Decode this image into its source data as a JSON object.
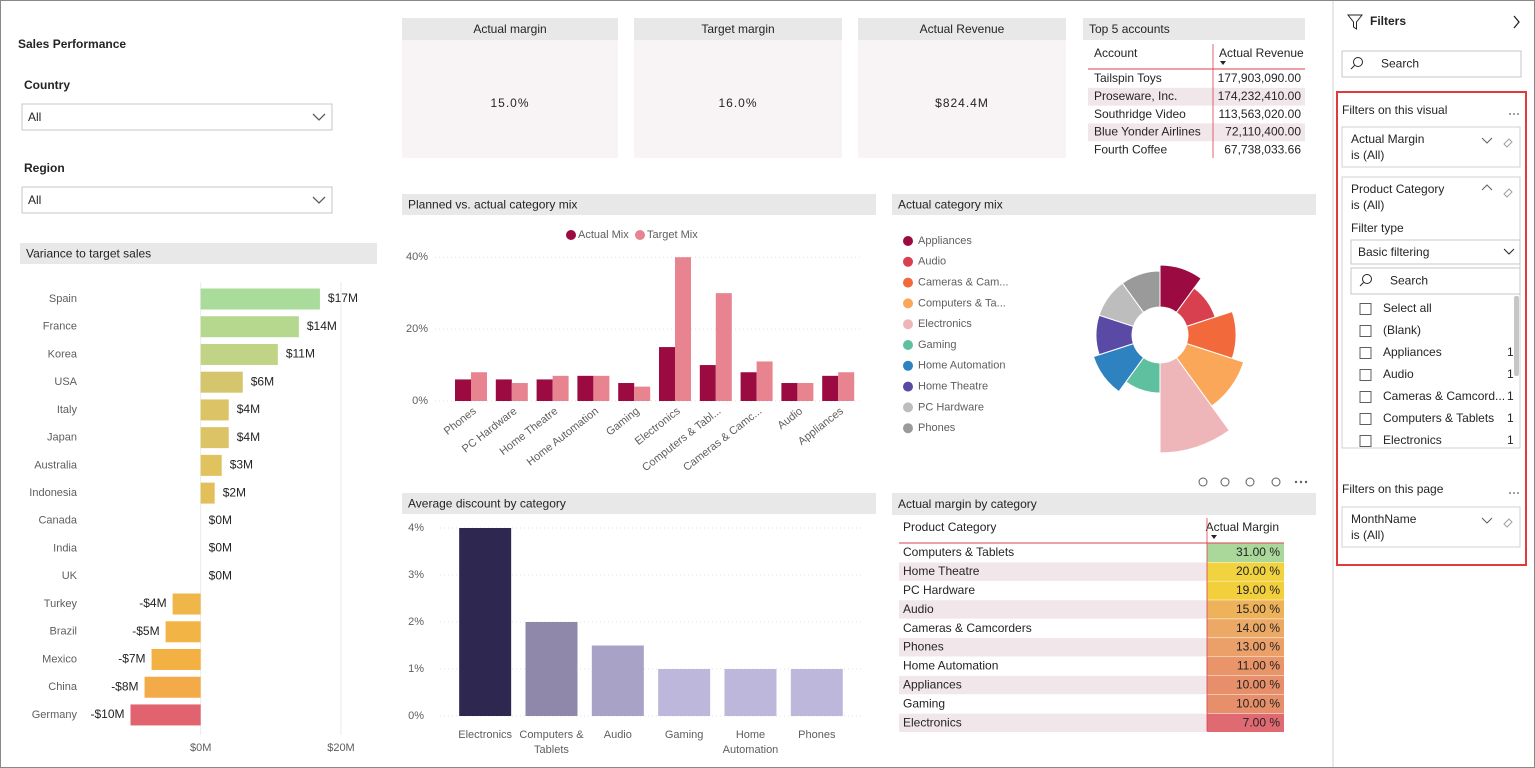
{
  "title": "Sales Performance",
  "slicers": [
    {
      "label": "Country",
      "value": "All"
    },
    {
      "label": "Region",
      "value": "All"
    }
  ],
  "kpis": [
    {
      "title": "Actual margin",
      "value": "15.0%"
    },
    {
      "title": "Target margin",
      "value": "16.0%"
    },
    {
      "title": "Actual Revenue",
      "value": "$824.4M"
    }
  ],
  "top_accounts": {
    "title": "Top 5 accounts",
    "columns": [
      "Account",
      "Actual Revenue"
    ],
    "rows": [
      [
        "Tailspin Toys",
        "177,903,090.00"
      ],
      [
        "Proseware, Inc.",
        "174,232,410.00"
      ],
      [
        "Southridge Video",
        "113,563,020.00"
      ],
      [
        "Blue Yonder Airlines",
        "72,110,400.00"
      ],
      [
        "Fourth Coffee",
        "67,738,033.66"
      ]
    ],
    "value_colors": [
      "#b09a9e",
      "#b09a9e",
      "#eeb13a",
      "#e9a59c",
      "#eea66a"
    ]
  },
  "chart_data": [
    {
      "type": "hbar",
      "title": "Variance to target sales",
      "categories": [
        "Spain",
        "France",
        "Korea",
        "USA",
        "Italy",
        "Japan",
        "Australia",
        "Indonesia",
        "Canada",
        "India",
        "UK",
        "Turkey",
        "Brazil",
        "Mexico",
        "China",
        "Germany"
      ],
      "values": [
        17,
        14,
        11,
        6,
        4,
        4,
        3,
        2,
        0,
        0,
        0,
        -4,
        -5,
        -7,
        -8,
        -10
      ],
      "value_labels": [
        "$17M",
        "$14M",
        "$11M",
        "$6M",
        "$4M",
        "$4M",
        "$3M",
        "$2M",
        "$0M",
        "$0M",
        "$0M",
        "-$4M",
        "-$5M",
        "-$7M",
        "-$8M",
        "-$10M"
      ],
      "colors": [
        "#a9dc9b",
        "#b6d88e",
        "#c1d385",
        "#d5c56c",
        "#dcc466",
        "#dcc466",
        "#e0c25f",
        "#e3bf5a",
        "#e6bd55",
        "#e6bd55",
        "#e6bd55",
        "#efb74a",
        "#f2b445",
        "#f4b143",
        "#f3aa48",
        "#e0636f"
      ],
      "xlim": [
        -10.5,
        22
      ],
      "xticks": [
        {
          "value": 0,
          "label": "$0M"
        },
        {
          "value": 20,
          "label": "$20M"
        }
      ],
      "grid": true
    },
    {
      "type": "groupbar",
      "title": "Planned vs. actual category mix",
      "categories": [
        "Phones",
        "PC Hardware",
        "Home Theatre",
        "Home Automation",
        "Gaming",
        "Electronics",
        "Computers & Tabl...",
        "Cameras & Camc...",
        "Audio",
        "Appliances"
      ],
      "series": [
        {
          "name": "Actual Mix",
          "color": "#9b0a40",
          "values": [
            6,
            6,
            6,
            7,
            5,
            15,
            10,
            8,
            5,
            7
          ]
        },
        {
          "name": "Target Mix",
          "color": "#e8848f",
          "values": [
            8,
            5,
            7,
            7,
            4,
            40,
            30,
            11,
            5,
            8
          ]
        }
      ],
      "ylim": [
        0,
        42
      ],
      "yticks": [
        {
          "value": 0,
          "label": "0%"
        },
        {
          "value": 20,
          "label": "20%"
        },
        {
          "value": 40,
          "label": "40%"
        }
      ],
      "grid": true
    },
    {
      "type": "polar",
      "title": "Actual category mix",
      "categories": [
        "Appliances",
        "Audio",
        "Cameras & Cam...",
        "Computers & Ta...",
        "Electronics",
        "Gaming",
        "Home Automation",
        "Home Theatre",
        "PC Hardware",
        "Phones"
      ],
      "values": [
        7,
        5,
        8,
        10,
        15,
        5,
        7,
        6,
        6,
        6
      ],
      "colors": [
        "#9b0a40",
        "#d9404f",
        "#f26a3c",
        "#fba75a",
        "#efb6b9",
        "#5fc0a0",
        "#2f82c0",
        "#5a4aa6",
        "#bdbdbd",
        "#9a9a9a"
      ]
    },
    {
      "type": "bar",
      "title": "Average discount by category",
      "categories": [
        "Electronics",
        "Computers & Tablets",
        "Audio",
        "Gaming",
        "Home Automation",
        "Phones"
      ],
      "values": [
        4,
        2,
        1.5,
        1,
        1,
        1
      ],
      "colors": [
        "#2e2850",
        "#8f88ab",
        "#a8a2c7",
        "#bdb8db",
        "#bdb8db",
        "#bdb8db"
      ],
      "ylim": [
        0,
        4.2
      ],
      "yticks": [
        {
          "value": 0,
          "label": "0%"
        },
        {
          "value": 1,
          "label": "1%"
        },
        {
          "value": 2,
          "label": "2%"
        },
        {
          "value": 3,
          "label": "3%"
        },
        {
          "value": 4,
          "label": "4%"
        }
      ],
      "grid": true
    }
  ],
  "margin_table": {
    "title": "Actual margin by category",
    "columns": [
      "Product Category",
      "Actual Margin"
    ],
    "rows": [
      [
        "Computers & Tablets",
        "31.00 %"
      ],
      [
        "Home Theatre",
        "20.00 %"
      ],
      [
        "PC Hardware",
        "19.00 %"
      ],
      [
        "Audio",
        "15.00 %"
      ],
      [
        "Cameras & Camcorders",
        "14.00 %"
      ],
      [
        "Phones",
        "13.00 %"
      ],
      [
        "Home Automation",
        "11.00 %"
      ],
      [
        "Appliances",
        "10.00 %"
      ],
      [
        "Gaming",
        "10.00 %"
      ],
      [
        "Electronics",
        "7.00 %"
      ]
    ],
    "cell_colors": [
      "#a9d89a",
      "#f1d23f",
      "#f3cf3c",
      "#eeb25a",
      "#eca865",
      "#eba06a",
      "#e99469",
      "#e78e6a",
      "#e78e6a",
      "#e06a72"
    ]
  },
  "filter_pane": {
    "title": "Filters",
    "search": "Search",
    "visual_section": "Filters on this visual",
    "visual_filters": [
      {
        "field": "Actual Margin",
        "state": "is (All)"
      },
      {
        "field": "Product Category",
        "state": "is (All)"
      }
    ],
    "filter_type_label": "Filter type",
    "filter_type": "Basic filtering",
    "list_search": "Search",
    "items": [
      {
        "label": "Select all"
      },
      {
        "label": "(Blank)"
      },
      {
        "label": "Appliances",
        "count": 1
      },
      {
        "label": "Audio",
        "count": 1
      },
      {
        "label": "Cameras & Camcord...",
        "count": 1
      },
      {
        "label": "Computers & Tablets",
        "count": 1
      },
      {
        "label": "Electronics",
        "count": 1
      }
    ],
    "page_section": "Filters on this page",
    "page_filters": [
      {
        "field": "MonthName",
        "state": "is (All)"
      }
    ]
  }
}
